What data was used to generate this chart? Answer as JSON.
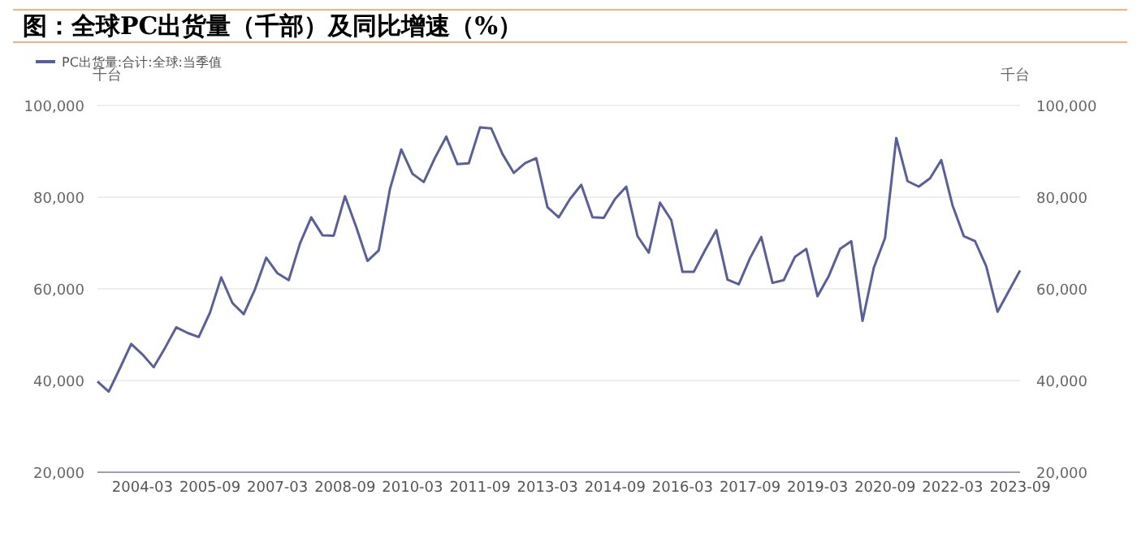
{
  "chart_data": {
    "type": "line",
    "title": "图：全球PC出货量（千部）及同比增速（%）",
    "ylabel": "千台",
    "y2label": "千台",
    "categories": [
      null,
      null,
      null,
      null,
      "2004-03",
      null,
      null,
      null,
      null,
      null,
      "2005-09",
      null,
      null,
      null,
      null,
      null,
      "2007-03",
      null,
      null,
      null,
      null,
      null,
      "2008-09",
      null,
      null,
      null,
      null,
      null,
      "2010-03",
      null,
      null,
      null,
      null,
      null,
      "2011-09",
      null,
      null,
      null,
      null,
      null,
      "2013-03",
      null,
      null,
      null,
      null,
      null,
      "2014-09",
      null,
      null,
      null,
      null,
      null,
      "2016-03",
      null,
      null,
      null,
      null,
      null,
      "2017-09",
      null,
      null,
      null,
      null,
      null,
      "2019-03",
      null,
      null,
      null,
      null,
      null,
      "2020-09",
      null,
      null,
      null,
      null,
      null,
      "2022-03",
      null,
      null,
      null,
      null,
      null,
      "2023-09"
    ],
    "series": [
      {
        "name": "PC出货量:合计:全球:当季值",
        "color": "#5b5f97",
        "values": [
          39800,
          37600,
          42700,
          48000,
          45700,
          42900,
          47100,
          51600,
          50400,
          49500,
          54800,
          62500,
          56900,
          54500,
          59900,
          66800,
          63400,
          61900,
          69900,
          75600,
          71700,
          71600,
          80200,
          73500,
          66100,
          68400,
          81800,
          90400,
          85100,
          83300,
          88600,
          93200,
          87200,
          87400,
          95200,
          95000,
          89400,
          85300,
          87400,
          88500,
          77800,
          75600,
          79600,
          82700,
          75600,
          75500,
          79600,
          82300,
          71500,
          67900,
          78800,
          75000,
          63700,
          63700,
          68400,
          72800,
          62000,
          61000,
          66700,
          71300,
          61300,
          61900,
          67000,
          68700,
          58400,
          62800,
          68700,
          70400,
          53000,
          64600,
          71100,
          92900,
          83500,
          82300,
          84100,
          88100,
          78200,
          71500,
          70400,
          64900,
          55000,
          59500,
          64000
        ]
      }
    ],
    "ylim": [
      20000,
      100000
    ],
    "yticks": [
      {
        "value": 20000,
        "label": "20,000"
      },
      {
        "value": 40000,
        "label": "40,000"
      },
      {
        "value": 60000,
        "label": "60,000"
      },
      {
        "value": 80000,
        "label": "80,000"
      },
      {
        "value": 100000,
        "label": "100,000"
      }
    ],
    "y2lim": [
      20000,
      100000
    ],
    "y2ticks": [
      {
        "value": 20000,
        "label": "20,000"
      },
      {
        "value": 40000,
        "label": "40,000"
      },
      {
        "value": 60000,
        "label": "60,000"
      },
      {
        "value": 80000,
        "label": "80,000"
      },
      {
        "value": 100000,
        "label": "100,000"
      }
    ],
    "grid": "y",
    "legend": "top left",
    "marker": "none",
    "line_style": "solid"
  }
}
